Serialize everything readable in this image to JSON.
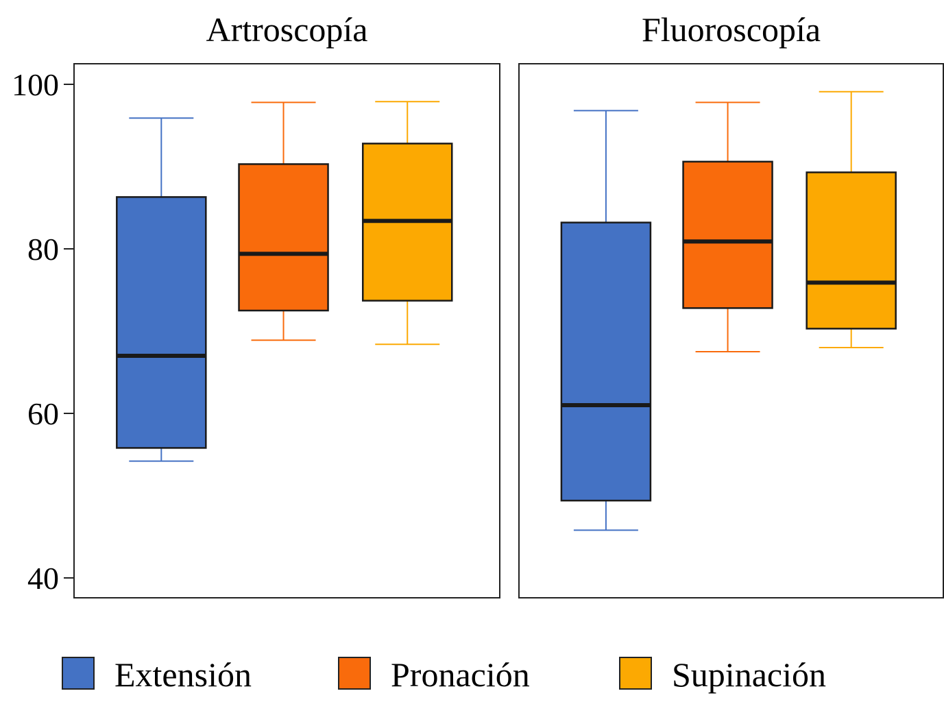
{
  "chart_data": {
    "type": "boxplot",
    "title": "",
    "xlabel": "",
    "ylabel": "",
    "ylim": [
      37.5,
      102.5
    ],
    "yticks": [
      40,
      60,
      80,
      100
    ],
    "grid": false,
    "legend_position": "bottom",
    "categories": [
      "Extensión",
      "Pronación",
      "Supinación"
    ],
    "colors": {
      "Extensión": "#4472c4",
      "Pronación": "#f96b0c",
      "Supinación": "#fca902"
    },
    "panels": [
      {
        "title": "Artroscopía",
        "boxes": [
          {
            "name": "Extensión",
            "whisker_low": 54.2,
            "q1": 55.8,
            "median": 67.0,
            "q3": 86.3,
            "whisker_high": 95.9
          },
          {
            "name": "Pronación",
            "whisker_low": 68.9,
            "q1": 72.5,
            "median": 79.4,
            "q3": 90.3,
            "whisker_high": 97.8
          },
          {
            "name": "Supinación",
            "whisker_low": 68.4,
            "q1": 73.7,
            "median": 83.4,
            "q3": 92.8,
            "whisker_high": 97.9
          }
        ]
      },
      {
        "title": "Fluoroscopía",
        "boxes": [
          {
            "name": "Extensión",
            "whisker_low": 45.8,
            "q1": 49.4,
            "median": 61.0,
            "q3": 83.2,
            "whisker_high": 96.8
          },
          {
            "name": "Pronación",
            "whisker_low": 67.5,
            "q1": 72.8,
            "median": 80.9,
            "q3": 90.6,
            "whisker_high": 97.8
          },
          {
            "name": "Supinación",
            "whisker_low": 68.0,
            "q1": 70.3,
            "median": 75.9,
            "q3": 89.3,
            "whisker_high": 99.1
          }
        ]
      }
    ],
    "legend": [
      "Extensión",
      "Pronación",
      "Supinación"
    ]
  }
}
